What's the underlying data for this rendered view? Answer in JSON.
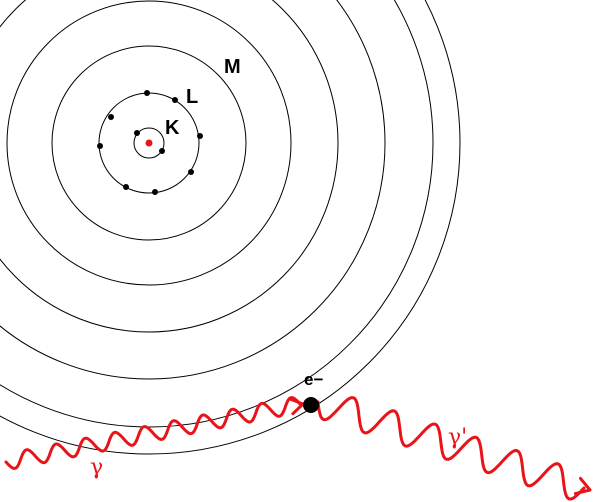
{
  "shell_labels": {
    "k": "K",
    "l": "L",
    "m": "M"
  },
  "electron_label": "e−",
  "incident_photon_label": "γ",
  "scattered_photon_label": "γ'",
  "colors": {
    "photon": "#e8141a",
    "nucleus": "#e8141a",
    "electron": "#000000",
    "shell": "#000000"
  }
}
